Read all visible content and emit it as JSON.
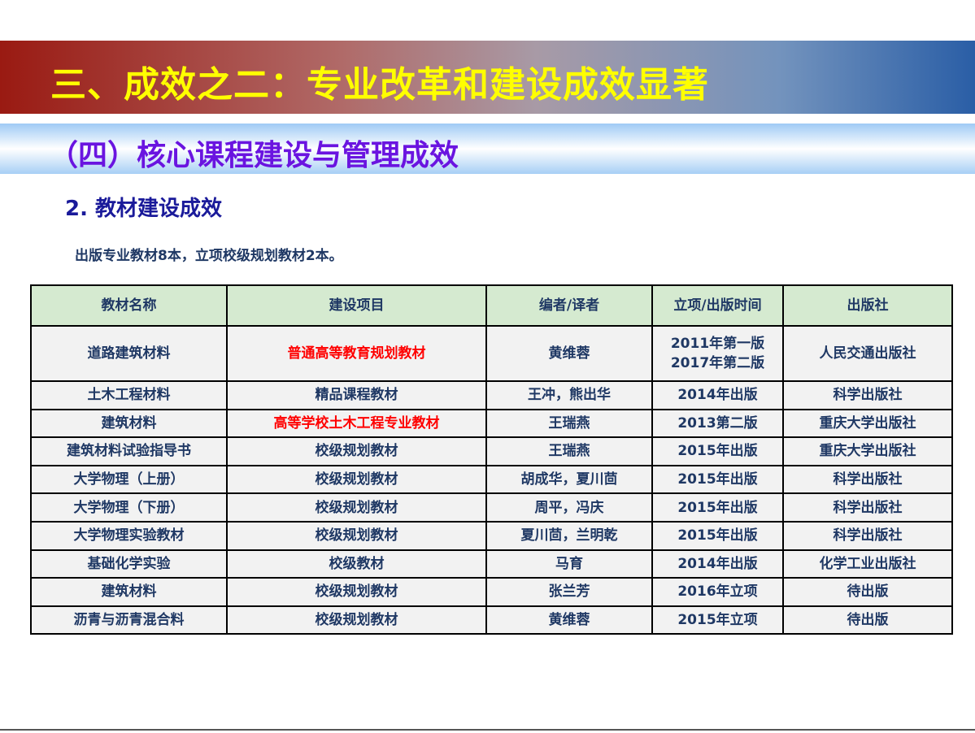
{
  "header": {
    "title": "三、成效之二：专业改革和建设成效显著"
  },
  "section": {
    "title": "（四）核心课程建设与管理成效"
  },
  "subsection": {
    "title": "2. 教材建设成效"
  },
  "intro": "出版专业教材8本，立项校级规划教材2本。",
  "colors": {
    "title_yellow": "#ffff00",
    "section_purple": "#6a14e0",
    "header_green": "#d5ead0",
    "text_navy": "#1f3864",
    "highlight_red": "#ff0000"
  },
  "table": {
    "headers": [
      "教材名称",
      "建设项目",
      "编者/译者",
      "立项/出版时间",
      "出版社"
    ],
    "rows": [
      {
        "name": "道路建筑材料",
        "project": "普通高等教育规划教材",
        "author": "黄维蓉",
        "time": [
          "2011年第一版",
          "2017年第二版"
        ],
        "publisher": "人民交通出版社",
        "highlight": true
      },
      {
        "name": "土木工程材料",
        "project": "精品课程教材",
        "author": "王冲，熊出华",
        "time": [
          "2014年出版"
        ],
        "publisher": "科学出版社",
        "highlight": false
      },
      {
        "name": "建筑材料",
        "project": "高等学校土木工程专业教材",
        "author": "王瑞燕",
        "time": [
          "2013第二版"
        ],
        "publisher": "重庆大学出版社",
        "highlight": true
      },
      {
        "name": "建筑材料试验指导书",
        "project": "校级规划教材",
        "author": "王瑞燕",
        "time": [
          "2015年出版"
        ],
        "publisher": "重庆大学出版社",
        "highlight": false
      },
      {
        "name": "大学物理（上册）",
        "project": "校级规划教材",
        "author": "胡成华，夏川茴",
        "time": [
          "2015年出版"
        ],
        "publisher": "科学出版社",
        "highlight": false
      },
      {
        "name": "大学物理（下册）",
        "project": "校级规划教材",
        "author": "周平，冯庆",
        "time": [
          "2015年出版"
        ],
        "publisher": "科学出版社",
        "highlight": false
      },
      {
        "name": "大学物理实验教材",
        "project": "校级规划教材",
        "author": "夏川茴，兰明乾",
        "time": [
          "2015年出版"
        ],
        "publisher": "科学出版社",
        "highlight": false
      },
      {
        "name": "基础化学实验",
        "project": "校级教材",
        "author": "马育",
        "time": [
          "2014年出版"
        ],
        "publisher": "化学工业出版社",
        "highlight": false
      },
      {
        "name": "建筑材料",
        "project": "校级规划教材",
        "author": "张兰芳",
        "time": [
          "2016年立项"
        ],
        "publisher": "待出版",
        "highlight": false
      },
      {
        "name": "沥青与沥青混合料",
        "project": "校级规划教材",
        "author": "黄维蓉",
        "time": [
          "2015年立项"
        ],
        "publisher": "待出版",
        "highlight": false
      }
    ]
  }
}
